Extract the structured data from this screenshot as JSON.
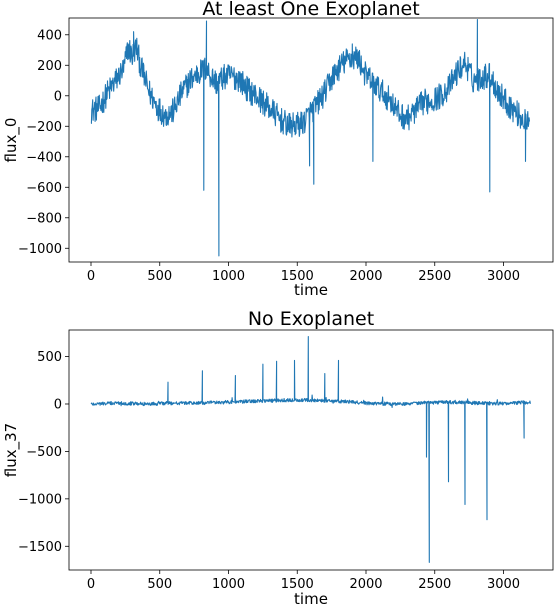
{
  "chart_data": [
    {
      "type": "line",
      "title": "At least One Exoplanet",
      "xlabel": "time",
      "ylabel": "flux_0",
      "xlim": [
        -160,
        3360
      ],
      "ylim": [
        -1090,
        510
      ],
      "xticks": [
        0,
        500,
        1000,
        1500,
        2000,
        2500,
        3000
      ],
      "yticks": [
        400,
        200,
        0,
        -200,
        -400,
        -600,
        -800,
        -1000
      ],
      "grid": false,
      "color": "#1f77b4",
      "series": [
        {
          "x": [
            0,
            60,
            120,
            180,
            240,
            270,
            300,
            330,
            360,
            420,
            480,
            540,
            600,
            660,
            720,
            780,
            840,
            870,
            920,
            960,
            1020,
            1080,
            1140,
            1200,
            1260,
            1320,
            1380,
            1440,
            1500,
            1540,
            1580,
            1640,
            1700,
            1760,
            1820,
            1880,
            1940,
            2000,
            2060,
            2120,
            2180,
            2240,
            2300,
            2360,
            2420,
            2480,
            2540,
            2600,
            2660,
            2720,
            2780,
            2840,
            2900,
            2960,
            3020,
            3080,
            3140,
            3190
          ],
          "y": [
            -100,
            -80,
            20,
            100,
            180,
            320,
            260,
            320,
            200,
            30,
            -70,
            -130,
            -100,
            20,
            100,
            150,
            180,
            130,
            80,
            120,
            130,
            110,
            40,
            0,
            -50,
            -100,
            -160,
            -200,
            -190,
            -180,
            -130,
            -60,
            20,
            130,
            200,
            250,
            250,
            130,
            80,
            20,
            -30,
            -120,
            -150,
            -100,
            -40,
            -30,
            0,
            50,
            150,
            220,
            100,
            120,
            140,
            30,
            -40,
            -100,
            -150,
            -200
          ]
        }
      ],
      "spikes": [
        {
          "x": 310,
          "y": 420
        },
        {
          "x": 820,
          "y": -620
        },
        {
          "x": 840,
          "y": 490
        },
        {
          "x": 930,
          "y": -1050
        },
        {
          "x": 1590,
          "y": -460
        },
        {
          "x": 1620,
          "y": -580
        },
        {
          "x": 1900,
          "y": 340
        },
        {
          "x": 2050,
          "y": -430
        },
        {
          "x": 2810,
          "y": 500
        },
        {
          "x": 2900,
          "y": -630
        },
        {
          "x": 3160,
          "y": -430
        }
      ]
    },
    {
      "type": "line",
      "title": "No Exoplanet",
      "xlabel": "time",
      "ylabel": "flux_37",
      "xlim": [
        -160,
        3360
      ],
      "ylim": [
        -1750,
        780
      ],
      "xticks": [
        0,
        500,
        1000,
        1500,
        2000,
        2500,
        3000
      ],
      "yticks": [
        500,
        0,
        -500,
        -1000,
        -1500
      ],
      "grid": false,
      "color": "#1f77b4",
      "series": [
        {
          "x": [
            0,
            200,
            400,
            600,
            800,
            1000,
            1200,
            1400,
            1600,
            1800,
            2000,
            2200,
            2400,
            2600,
            2800,
            3000,
            3200
          ],
          "y": [
            0,
            10,
            0,
            10,
            10,
            20,
            30,
            40,
            40,
            30,
            10,
            0,
            10,
            20,
            10,
            5,
            20
          ]
        }
      ],
      "spikes": [
        {
          "x": 560,
          "y": 230
        },
        {
          "x": 810,
          "y": 350
        },
        {
          "x": 1050,
          "y": 300
        },
        {
          "x": 1250,
          "y": 420
        },
        {
          "x": 1350,
          "y": 450
        },
        {
          "x": 1480,
          "y": 460
        },
        {
          "x": 1580,
          "y": 710
        },
        {
          "x": 1700,
          "y": 320
        },
        {
          "x": 1800,
          "y": 460
        },
        {
          "x": 2440,
          "y": -560
        },
        {
          "x": 2460,
          "y": -1670
        },
        {
          "x": 2600,
          "y": -820
        },
        {
          "x": 2720,
          "y": -1060
        },
        {
          "x": 2880,
          "y": -1220
        },
        {
          "x": 3150,
          "y": -360
        }
      ]
    }
  ]
}
